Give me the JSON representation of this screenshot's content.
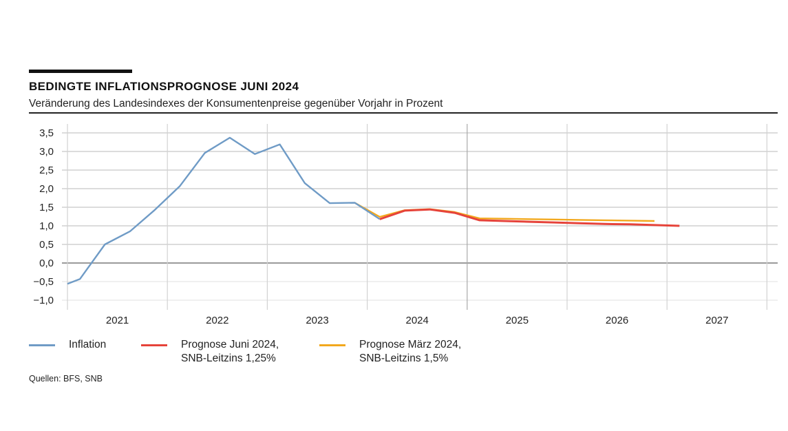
{
  "header": {
    "title": "BEDINGTE INFLATIONSPROGNOSE JUNI 2024",
    "subtitle": "Veränderung des Landesindexes der Konsumentenpreise gegenüber Vorjahr in Prozent"
  },
  "legend": {
    "items": [
      {
        "line1": "Inflation",
        "line2": "",
        "color": "#6f9bc6"
      },
      {
        "line1": "Prognose Juni 2024,",
        "line2": "SNB-Leitzins 1,25%",
        "color": "#e6433a"
      },
      {
        "line1": "Prognose März 2024,",
        "line2": "SNB-Leitzins 1,5%",
        "color": "#f2a81d"
      }
    ]
  },
  "source": "Quellen: BFS, SNB",
  "chart_data": {
    "type": "line",
    "title": "BEDINGTE INFLATIONSPROGNOSE JUNI 2024",
    "subtitle": "Veränderung des Landesindexes der Konsumentenpreise gegenüber Vorjahr in Prozent",
    "xlabel": "",
    "ylabel": "",
    "ylim": [
      -1.0,
      3.5
    ],
    "xlim": [
      "2021",
      "2027"
    ],
    "yticks": [
      "3,5",
      "3,0",
      "2,5",
      "2,0",
      "1,5",
      "1,0",
      "0,5",
      "0,0",
      "−0,5",
      "−1,0"
    ],
    "ytick_values": [
      3.5,
      3.0,
      2.5,
      2.0,
      1.5,
      1.0,
      0.5,
      0.0,
      -0.5,
      -1.0
    ],
    "xticks": [
      "2021",
      "2022",
      "2023",
      "2024",
      "2025",
      "2026",
      "2027"
    ],
    "grid": true,
    "legend_position": "bottom",
    "x_unit": "quarter (years from 2021 start)",
    "series": [
      {
        "name": "Inflation",
        "color": "#6f9bc6",
        "x": [
          0.0,
          0.125,
          0.375,
          0.625,
          0.875,
          1.125,
          1.375,
          1.625,
          1.875,
          2.125,
          2.375,
          2.625,
          2.875,
          3.125
        ],
        "values": [
          -0.56,
          -0.43,
          0.5,
          0.85,
          1.43,
          2.07,
          2.96,
          3.37,
          2.93,
          3.19,
          2.15,
          1.61,
          1.62,
          1.18
        ]
      },
      {
        "name": "Prognose Juni 2024, SNB-Leitzins 1,25%",
        "color": "#e6433a",
        "x": [
          3.125,
          3.375,
          3.625,
          3.875,
          4.125,
          4.375,
          4.625,
          4.875,
          5.125,
          5.375,
          5.625,
          5.875,
          6.125
        ],
        "values": [
          1.18,
          1.41,
          1.44,
          1.35,
          1.15,
          1.13,
          1.11,
          1.09,
          1.07,
          1.05,
          1.04,
          1.02,
          1.0
        ]
      },
      {
        "name": "Prognose März 2024, SNB-Leitzins 1,5%",
        "color": "#f2a81d",
        "x": [
          2.875,
          3.125,
          3.375,
          3.625,
          3.875,
          4.125,
          4.375,
          4.625,
          4.875,
          5.125,
          5.375,
          5.625,
          5.875
        ],
        "values": [
          1.62,
          1.24,
          1.42,
          1.45,
          1.37,
          1.2,
          1.19,
          1.18,
          1.17,
          1.16,
          1.15,
          1.14,
          1.13
        ]
      }
    ]
  }
}
